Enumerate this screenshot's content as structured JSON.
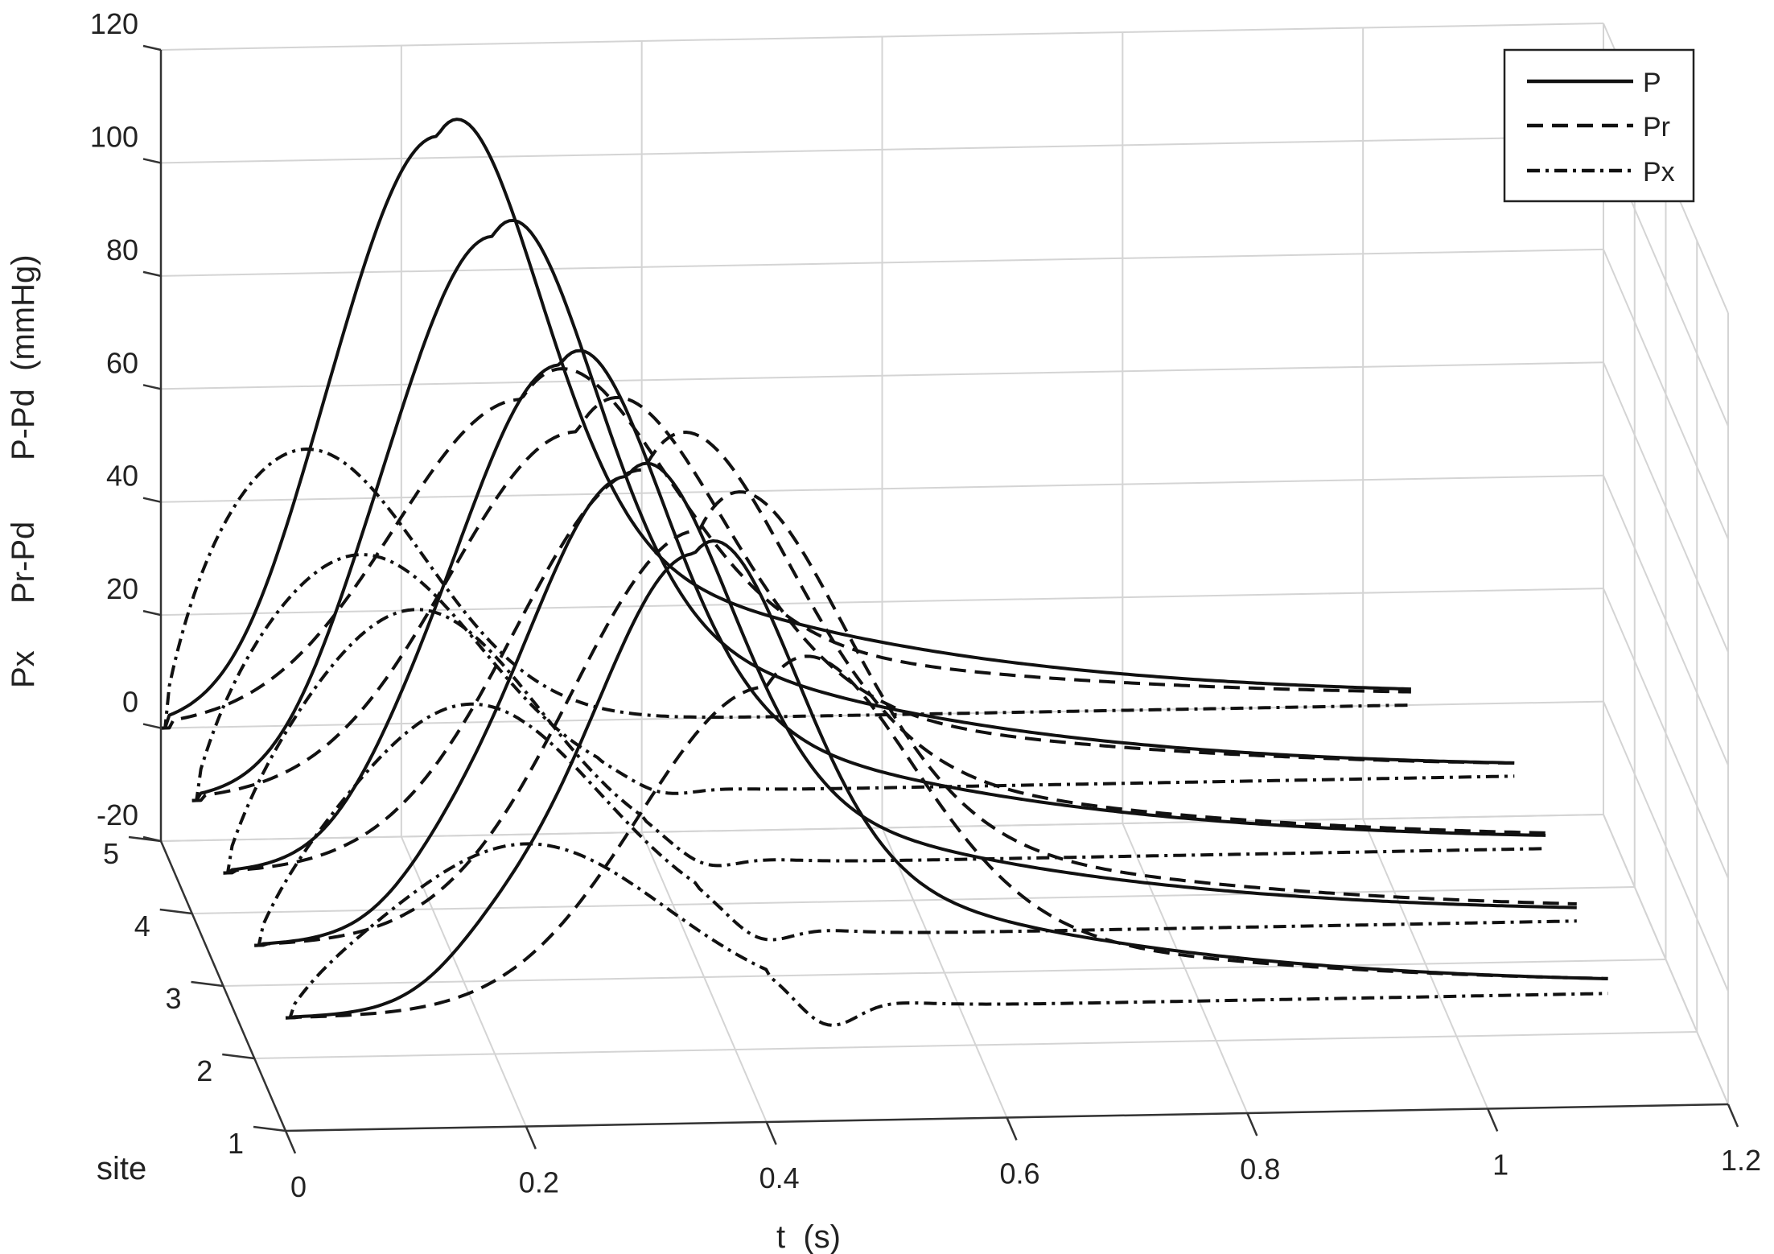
{
  "chart_data": {
    "type": "line",
    "view": "3d",
    "xlabel": "t  (s)",
    "zlabel": [
      "Px",
      "Pr-Pd",
      "P-Pd  (mmHg)"
    ],
    "ylabel": "site",
    "xlim": [
      0,
      1.2
    ],
    "ylim": [
      1,
      5
    ],
    "zlim": [
      -20,
      120
    ],
    "x_ticks": [
      "0",
      "0.2",
      "0.4",
      "0.6",
      "0.8",
      "1",
      "1.2"
    ],
    "y_ticks": [
      "1",
      "2",
      "3",
      "4",
      "5"
    ],
    "z_ticks": [
      "-20",
      "0",
      "20",
      "40",
      "60",
      "80",
      "100",
      "120"
    ],
    "grid": true,
    "legend_position": "top-right",
    "legend": [
      {
        "label": "P",
        "style": "solid"
      },
      {
        "label": "Pr",
        "style": "dashed"
      },
      {
        "label": "Px",
        "style": "dash-dot"
      }
    ],
    "series": [
      {
        "site": 5,
        "P": {
          "onset": 0.0,
          "peak_t": 0.23,
          "peak": 103,
          "end_t": 1.04,
          "end": 6
        },
        "Pr": {
          "onset": 0.0,
          "peak_t": 0.3,
          "peak": 57,
          "end_t": 1.04
        },
        "Px": {
          "onset": 0.0,
          "peak_t": 0.12,
          "peak": 49,
          "return_t": 0.38,
          "floor": 0,
          "end_t": 1.04
        }
      },
      {
        "site": 4,
        "P": {
          "onset": 0.0,
          "peak_t": 0.25,
          "peak": 98,
          "end_t": 1.1,
          "end": 5
        },
        "Pr": {
          "onset": 0.0,
          "peak_t": 0.32,
          "peak": 64,
          "end_t": 1.1
        },
        "Px": {
          "onset": 0.0,
          "peak_t": 0.14,
          "peak": 43,
          "return_t": 0.39,
          "floor": -2,
          "end_t": 1.1
        }
      },
      {
        "site": 3,
        "P": {
          "onset": 0.0,
          "peak_t": 0.28,
          "peak": 88,
          "end_t": 1.1,
          "end": 5
        },
        "Pr": {
          "onset": 0.0,
          "peak_t": 0.35,
          "peak": 70,
          "end_t": 1.1
        },
        "Px": {
          "onset": 0.0,
          "peak_t": 0.16,
          "peak": 46,
          "return_t": 0.4,
          "floor": -3,
          "end_t": 1.1
        }
      },
      {
        "site": 2,
        "P": {
          "onset": 0.0,
          "peak_t": 0.31,
          "peak": 81,
          "end_t": 1.1,
          "end": 5
        },
        "Pr": {
          "onset": 0.0,
          "peak_t": 0.37,
          "peak": 72,
          "end_t": 1.1
        },
        "Px": {
          "onset": 0.0,
          "peak_t": 0.18,
          "peak": 42,
          "return_t": 0.42,
          "floor": -4,
          "end_t": 1.1
        }
      },
      {
        "site": 1,
        "P": {
          "onset": 0.0,
          "peak_t": 0.34,
          "peak": 80,
          "end_t": 1.1,
          "end": 0
        },
        "Pr": {
          "onset": 0.0,
          "peak_t": 0.4,
          "peak": 57,
          "end_t": 1.1
        },
        "Px": {
          "onset": 0.0,
          "peak_t": 0.2,
          "peak": 30,
          "return_t": 0.45,
          "floor": -6,
          "end_t": 1.1
        }
      }
    ]
  }
}
